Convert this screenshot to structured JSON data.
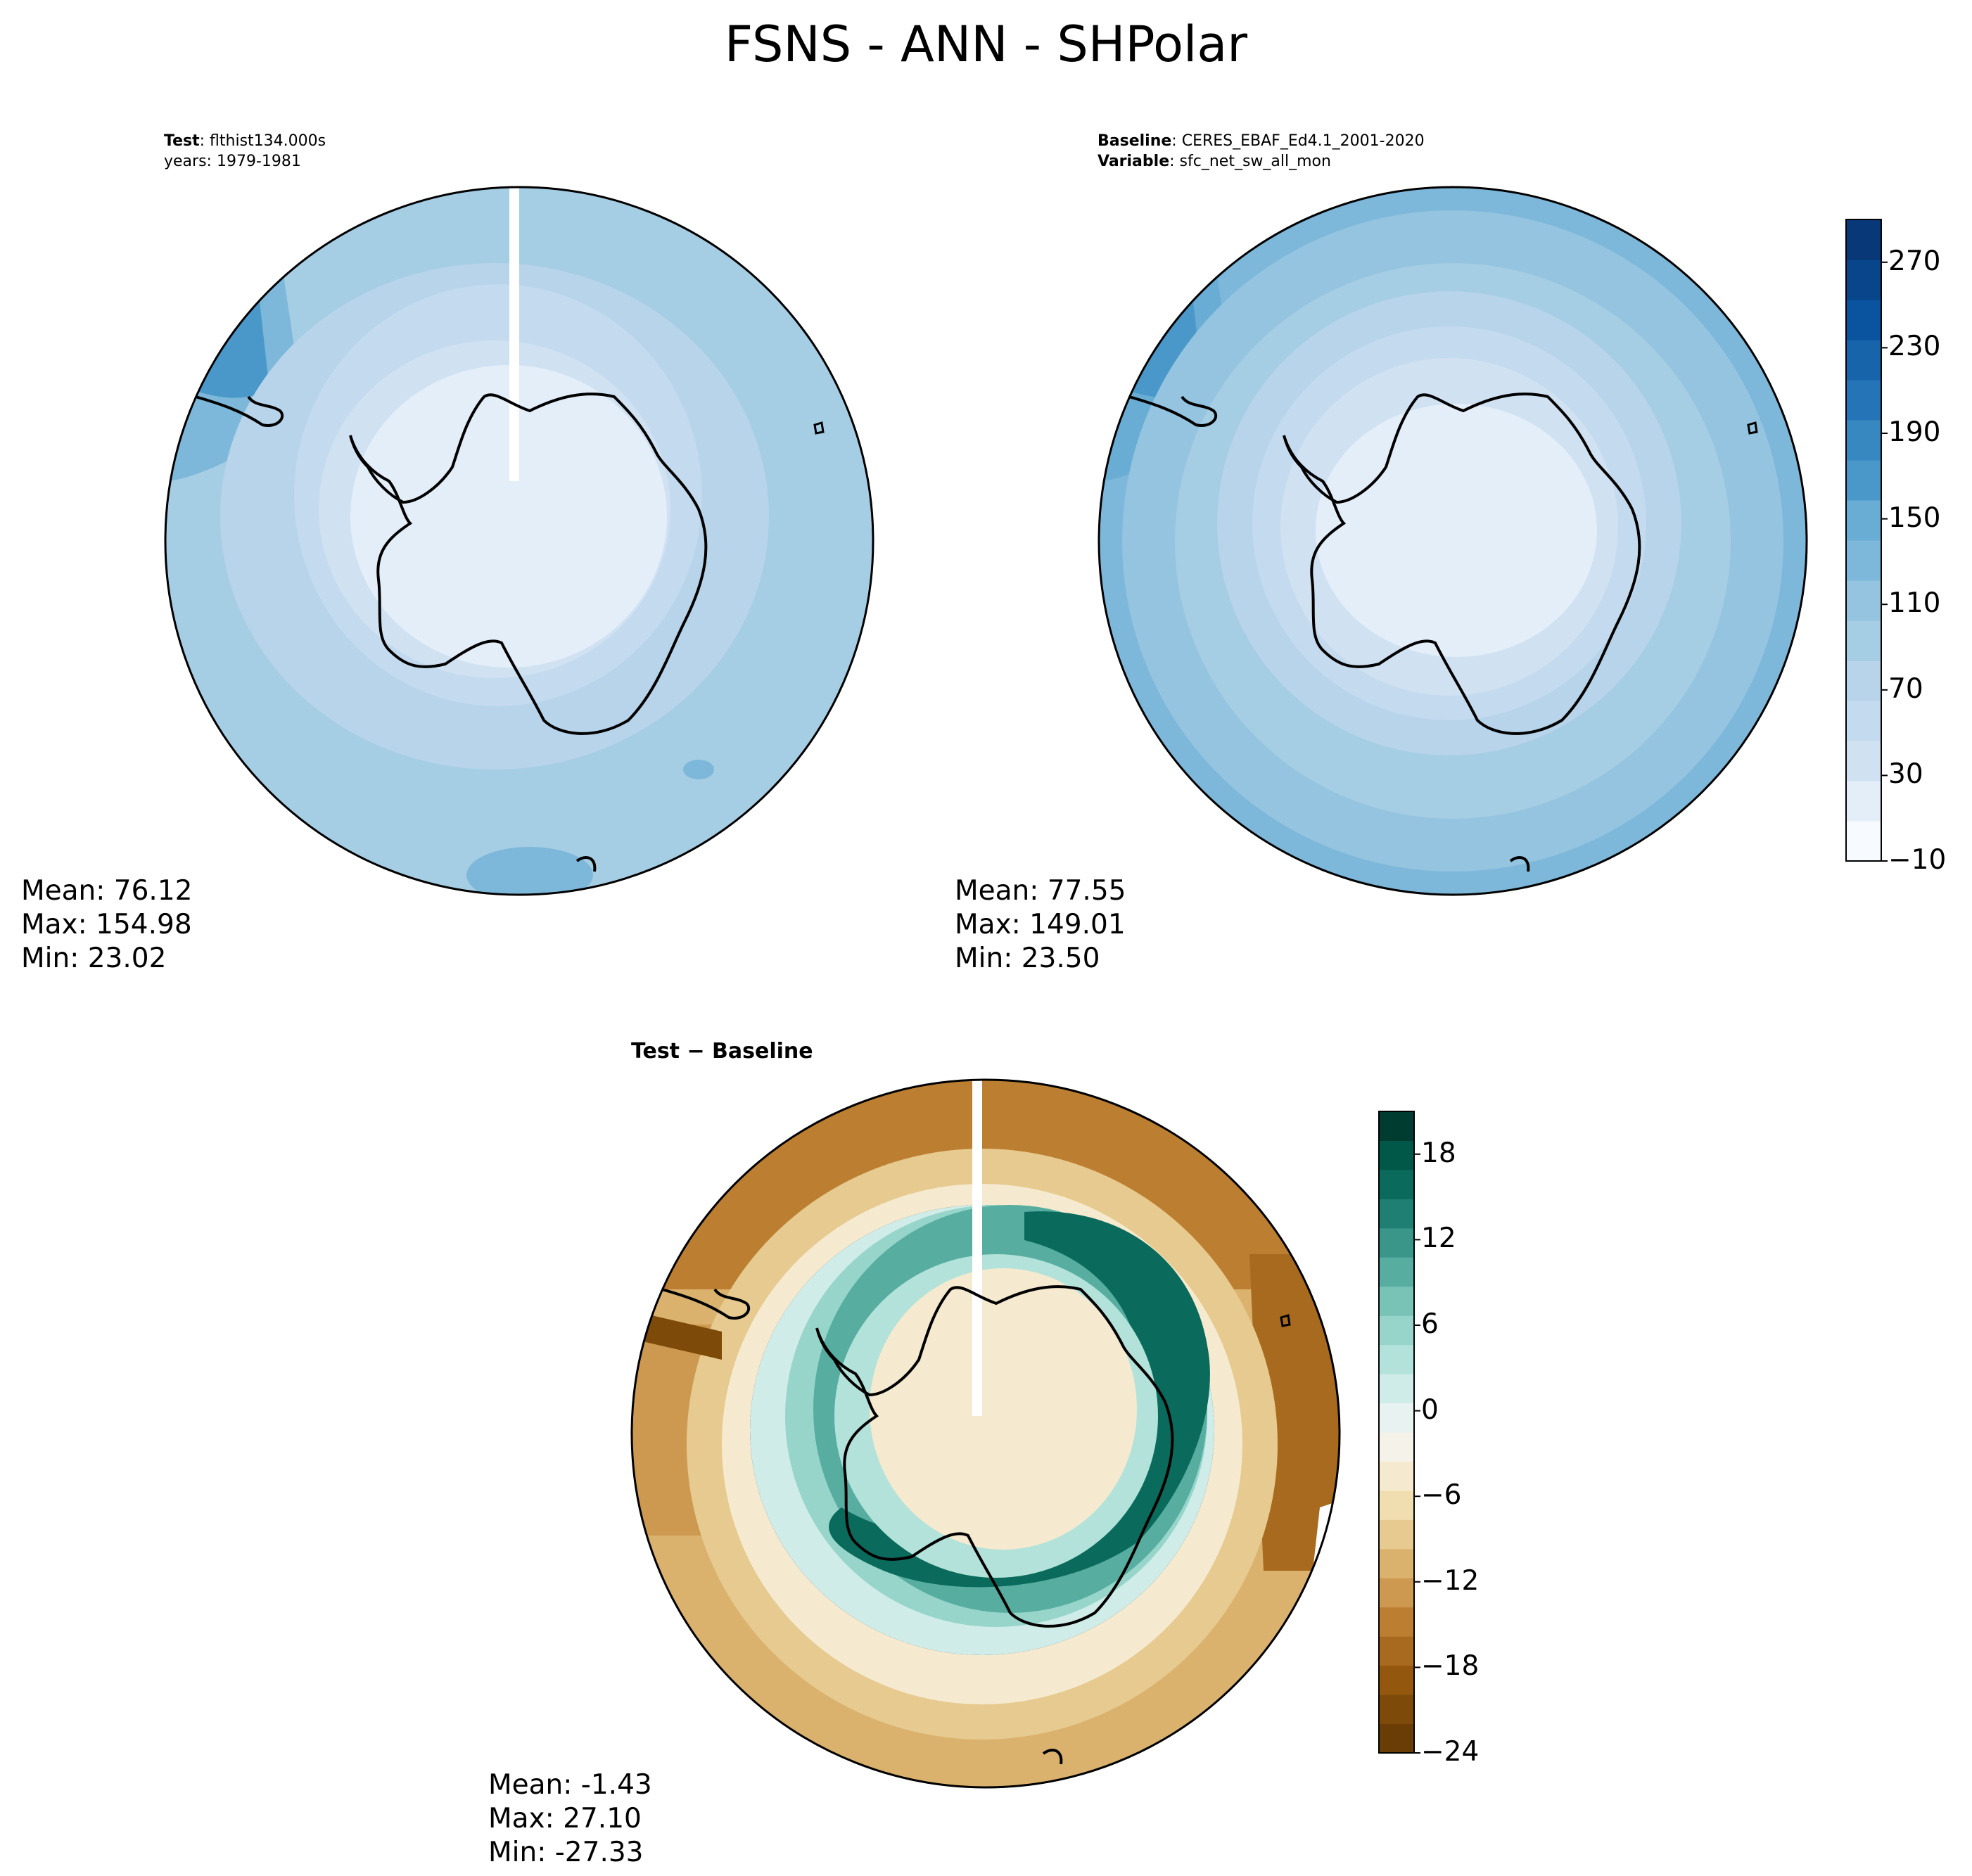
{
  "figure_title": "FSNS - ANN - SHPolar",
  "panels": {
    "test": {
      "header_label": "Test",
      "header_value": "flthist134.000s",
      "header_line2": "years: 1979-1981",
      "mean_label": "Mean: 76.12",
      "max_label": "Max: 154.98",
      "min_label": "Min: 23.02"
    },
    "baseline": {
      "header_label": "Baseline",
      "header_value": "CERES_EBAF_Ed4.1_2001-2020",
      "header_label2": "Variable",
      "header_value2": "sfc_net_sw_all_mon",
      "mean_label": "Mean: 77.55",
      "max_label": "Max: 149.01",
      "min_label": "Min: 23.50"
    },
    "diff": {
      "header_label": "Test − Baseline",
      "mean_label": "Mean: -1.43",
      "max_label": "Max: 27.10",
      "min_label": "Min: -27.33"
    }
  },
  "colorbar_main": {
    "ticks": [
      "270",
      "230",
      "190",
      "150",
      "110",
      "70",
      "30",
      "−10"
    ],
    "colors": [
      "#f7fbff",
      "#e3eef9",
      "#d0e1f2",
      "#c4daee",
      "#b7d4ea",
      "#a5cde3",
      "#94c4df",
      "#7db8da",
      "#69add5",
      "#4a98c9",
      "#3787c0",
      "#2474b7",
      "#1764ab",
      "#0a539e",
      "#08458a",
      "#083877"
    ]
  },
  "colorbar_diff": {
    "ticks": [
      "18",
      "12",
      "6",
      "0",
      "−6",
      "−12",
      "−18",
      "−24"
    ],
    "colors": [
      "#6b3d06",
      "#7e4a09",
      "#93580d",
      "#a86a1e",
      "#bc7f32",
      "#cd9950",
      "#dab26e",
      "#e6ca8f",
      "#f0ddb0",
      "#f5ead0",
      "#f5f2ea",
      "#e8f2f0",
      "#d0ece8",
      "#b3e2da",
      "#97d5ca",
      "#78c3b6",
      "#57ada0",
      "#399689",
      "#1f7f72",
      "#0a6b5c",
      "#015848",
      "#003c30"
    ]
  },
  "chart_data": [
    {
      "type": "heatmap",
      "projection": "south polar stereographic",
      "title": "Test",
      "mean": 76.12,
      "max": 154.98,
      "min": 23.02,
      "colorbar_range": [
        -10,
        290
      ],
      "colorbar_ticks": [
        -10,
        30,
        70,
        110,
        150,
        190,
        230,
        270
      ]
    },
    {
      "type": "heatmap",
      "projection": "south polar stereographic",
      "title": "Baseline",
      "mean": 77.55,
      "max": 149.01,
      "min": 23.5,
      "colorbar_range": [
        -10,
        290
      ],
      "colorbar_ticks": [
        -10,
        30,
        70,
        110,
        150,
        190,
        230,
        270
      ]
    },
    {
      "type": "heatmap",
      "projection": "south polar stereographic",
      "title": "Test − Baseline",
      "mean": -1.43,
      "max": 27.1,
      "min": -27.33,
      "colorbar_range": [
        -24,
        21
      ],
      "colorbar_ticks": [
        -24,
        -18,
        -12,
        -6,
        0,
        6,
        12,
        18
      ]
    }
  ]
}
